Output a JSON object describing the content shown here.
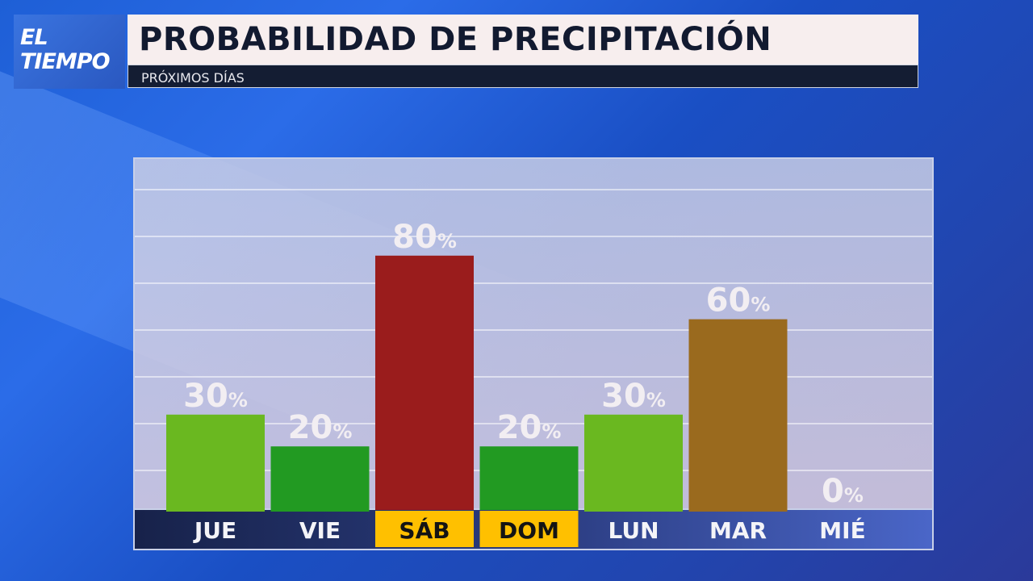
{
  "header": {
    "logo": "EL TIEMPO",
    "title": "PROBABILIDAD DE PRECIPITACIÓN",
    "subtitle": "PRÓXIMOS DÍAS"
  },
  "chart_data": {
    "type": "bar",
    "title": "PROBABILIDAD DE PRECIPITACIÓN",
    "subtitle": "PRÓXIMOS DÍAS",
    "categories": [
      "JUE",
      "VIE",
      "SÁB",
      "DOM",
      "LUN",
      "MAR",
      "MIÉ"
    ],
    "values": [
      30,
      20,
      80,
      20,
      30,
      60,
      0
    ],
    "labels": [
      "30%",
      "20%",
      "80%",
      "20%",
      "30%",
      "60%",
      "0%"
    ],
    "bar_colors": [
      "#6ab820",
      "#229a22",
      "#9a1c1c",
      "#229a22",
      "#6ab820",
      "#9a6a1e",
      "#6ab820"
    ],
    "highlight_categories": [
      "SÁB",
      "DOM"
    ],
    "highlight_color": "#ffc000",
    "ylim": [
      0,
      100
    ],
    "grid": true,
    "xlabel": "",
    "ylabel": ""
  }
}
